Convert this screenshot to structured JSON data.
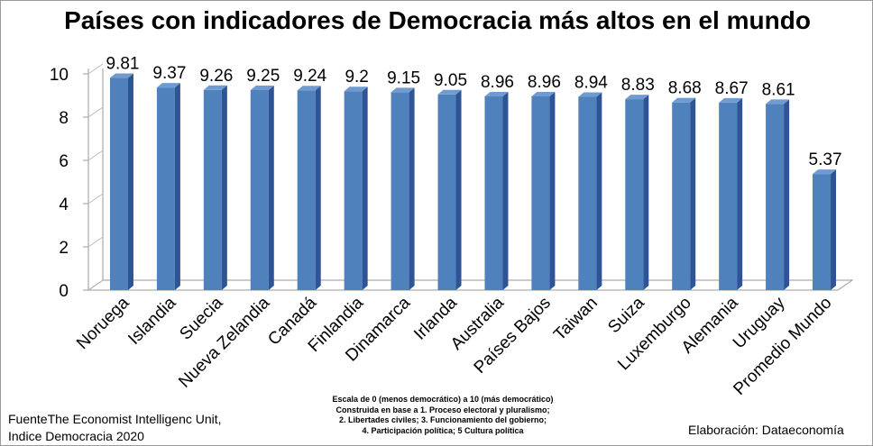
{
  "chart_data": {
    "type": "bar",
    "title": "Países con indicadores de Democracia más altos en el mundo",
    "categories": [
      "Noruega",
      "Islandia",
      "Suecia",
      "Nueva Zelandia",
      "Canadá",
      "Finlandia",
      "Dinamarca",
      "Irlanda",
      "Australia",
      "Países Bajos",
      "Taiwan",
      "Suiza",
      "Luxemburgo",
      "Alemania",
      "Uruguay",
      "Promedio Mundo"
    ],
    "values": [
      9.81,
      9.37,
      9.26,
      9.25,
      9.24,
      9.2,
      9.15,
      9.05,
      8.96,
      8.96,
      8.94,
      8.83,
      8.68,
      8.67,
      8.61,
      5.37
    ],
    "data_labels": [
      "9.81",
      "9.37",
      "9.26",
      "9.25",
      "9.24",
      "9.2",
      "9.15",
      "9.05",
      "8.96",
      "8.96",
      "8.94",
      "8.83",
      "8.68",
      "8.67",
      "8.61",
      "5.37"
    ],
    "y_ticks": [
      "0",
      "2",
      "4",
      "6",
      "8",
      "10"
    ],
    "ylim": [
      0,
      10
    ],
    "xlabel": "",
    "ylabel": "",
    "grid": false,
    "legend": "none",
    "style": "3d-bar",
    "colors": {
      "bar_front": "#4f81bd",
      "bar_top": "#6f9bd1",
      "bar_side": "#2f5496"
    }
  },
  "notes": {
    "source_line1": "FuenteThe Economist Intelligenc Unit,",
    "source_line2": "Indice Democracia 2020",
    "scale_line1": "Escala de 0 (menos democrático) a 10 (más democrático)",
    "scale_line2": "Construida en base a 1. Proceso electoral y pluralismo;",
    "scale_line3": "2. Libertades civiles; 3. Funcionamiento del gobierno;",
    "scale_line4": "4. Participación política; 5 Cultura política",
    "author": "Elaboración: Dataeconomía"
  }
}
